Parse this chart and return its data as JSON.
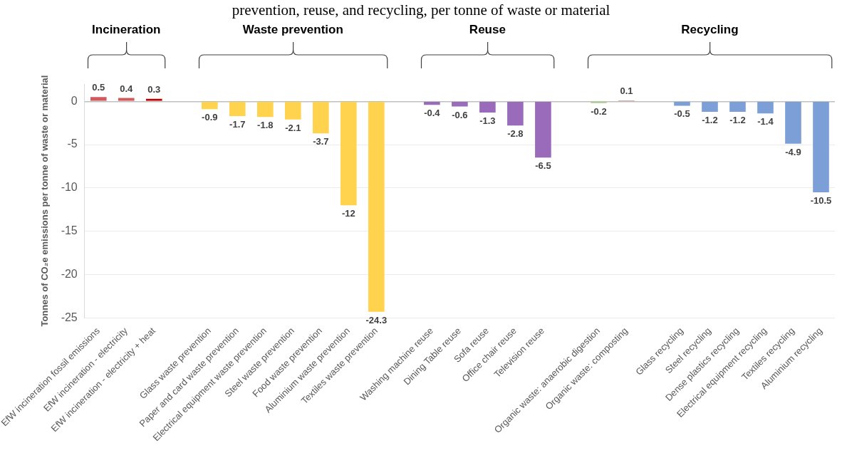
{
  "chart_data": {
    "type": "bar",
    "title": "prevention, reuse, and recycling, per tonne of waste or material",
    "ylabel": "Tonnes of CO₂e emissions per tonne of waste or material",
    "categories": [
      "EfW incineration fossil emissions",
      "EfW incineration - electricity",
      "EfW incineration - electricity + heat",
      null,
      "Glass waste prevention",
      "Paper and card waste prevention",
      "Electrical equipment waste prevention",
      "Steel waste prevention",
      "Food waste prevention",
      "Aluminium waste prevention",
      "Textiles waste prevention",
      null,
      "Washing machine reuse",
      "Dining Table reuse",
      "Sofa reuse",
      "Office chair reuse",
      "Television reuse",
      null,
      "Organic waste: anaerobic digestion",
      "Organic waste: composting",
      null,
      "Glass recycling",
      "Steel recycling",
      "Dense plastics recycling",
      "Electrical equipment recycling",
      "Textiles recycling",
      "Aluminium recycling"
    ],
    "values": [
      0.5,
      0.4,
      0.3,
      null,
      -0.9,
      -1.7,
      -1.8,
      -2.1,
      -3.7,
      -12,
      -24.3,
      null,
      -0.4,
      -0.6,
      -1.3,
      -2.8,
      -6.5,
      null,
      -0.2,
      0.1,
      null,
      -0.5,
      -1.2,
      -1.2,
      -1.4,
      -4.9,
      -10.5
    ],
    "colors": [
      "#d05a5c",
      "#d05a5c",
      "#c00000",
      null,
      "#ffd34e",
      "#ffd34e",
      "#ffd34e",
      "#ffd34e",
      "#ffd34e",
      "#ffd34e",
      "#ffd34e",
      null,
      "#9b6bbb",
      "#9b6bbb",
      "#9b6bbb",
      "#9b6bbb",
      "#9b6bbb",
      null,
      "#a9d18e",
      "#c0504d",
      null,
      "#7b9fd6",
      "#7b9fd6",
      "#7b9fd6",
      "#7b9fd6",
      "#7b9fd6",
      "#7b9fd6"
    ],
    "ylim": [
      -25,
      2
    ],
    "yticks": [
      -25,
      -20,
      -15,
      -10,
      -5,
      0
    ],
    "grid": "y",
    "legend": false,
    "data_labels": true,
    "annotations": [
      "Incineration",
      "Waste prevention",
      "Reuse",
      "Recycling"
    ]
  }
}
